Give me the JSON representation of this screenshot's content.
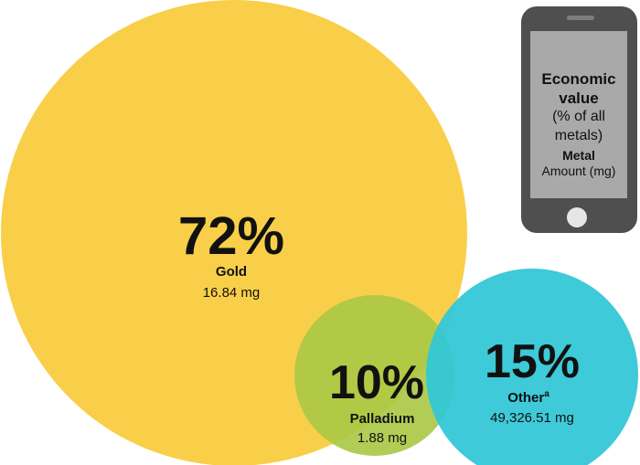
{
  "chart_data": {
    "type": "bubble",
    "unit": "% of all metals (economic value)",
    "series": [
      {
        "name": "Gold",
        "percent_label": "72%",
        "value": 72,
        "amount": "16.84 mg",
        "superscript": "",
        "color": "#f9cf4a"
      },
      {
        "name": "Palladium",
        "percent_label": "10%",
        "value": 10,
        "amount": "1.88 mg",
        "superscript": "",
        "color": "#a8c844"
      },
      {
        "name": "Other",
        "percent_label": "15%",
        "value": 15,
        "amount": "49,326.51 mg",
        "superscript": "a",
        "color": "#34c7d6"
      }
    ]
  },
  "legend": {
    "title_line1": "Economic",
    "title_line2": "value",
    "sub_line1": "(% of all",
    "sub_line2": "metals)",
    "metal_label": "Metal",
    "amount_label": "Amount (mg)"
  }
}
